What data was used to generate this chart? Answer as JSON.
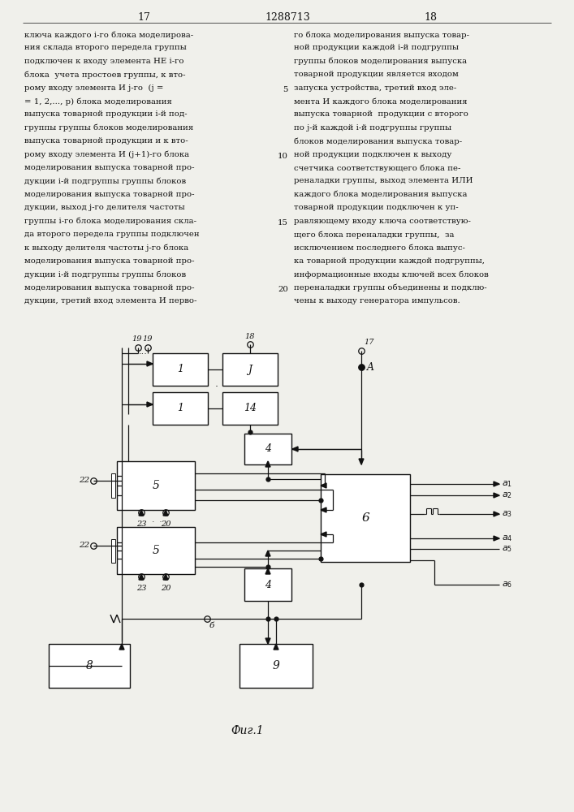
{
  "page_numbers": [
    "17",
    "1288713",
    "18"
  ],
  "caption": "Фиг.1",
  "background_color": "#f0f0eb",
  "text_color": "#111111",
  "line_color": "#111111",
  "box_color": "#ffffff",
  "left_lines": [
    "ключа каждого i-го блока моделирова-",
    "ния склада второго передела группы",
    "подключен к входу элемента НЕ i-го",
    "блока  учета простоев группы, к вто-",
    "рому входу элемента И j-го  (j =",
    "= 1, 2,..., р) блока моделирования",
    "выпуска товарной продукции i-й под-",
    "группы группы блоков моделирования",
    "выпуска товарной продукции и к вто-",
    "рому входу элемента И (j+1)-го блока",
    "моделирования выпуска товарной про-",
    "дукции i-й подгруппы группы блоков",
    "моделирования выпуска товарной про-",
    "дукции, выход j-го делителя частоты",
    "группы i-го блока моделирования скла-",
    "да второго передела группы подключен",
    "к выходу делителя частоты j-го блока",
    "моделирования выпуска товарной про-",
    "дукции i-й подгруппы группы блоков",
    "моделирования выпуска товарной про-",
    "дукции, третий вход элемента И перво-"
  ],
  "right_lines": [
    "го блока моделирования выпуска товар-",
    "ной продукции каждой i-й подгруппы",
    "группы блоков моделирования выпуска",
    "товарной продукции является входом",
    "запуска устройства, третий вход эле-",
    "мента И каждого блока моделирования",
    "выпуска товарной  продукции с второго",
    "по j-й каждой i-й подгруппы группы",
    "блоков моделирования выпуска товар-",
    "ной продукции подключен к выходу",
    "счетчика соответствующего блока пе-",
    "реналадки группы, выход элемента ИЛИ",
    "каждого блока моделирования выпуска",
    "товарной продукции подключен к уп-",
    "равляющему входу ключа соответствую-",
    "щего блока переналадки группы,  за",
    "исключением последнего блока выпус-",
    "ка товарной продукции каждой подгруппы,",
    "информационные входы ключей всех блоков",
    "переналадки группы объединены и подклю-",
    "чены к выходу генератора импульсов."
  ],
  "line_nums": {
    "4": "5",
    "9": "10",
    "14": "15",
    "19": "20"
  }
}
